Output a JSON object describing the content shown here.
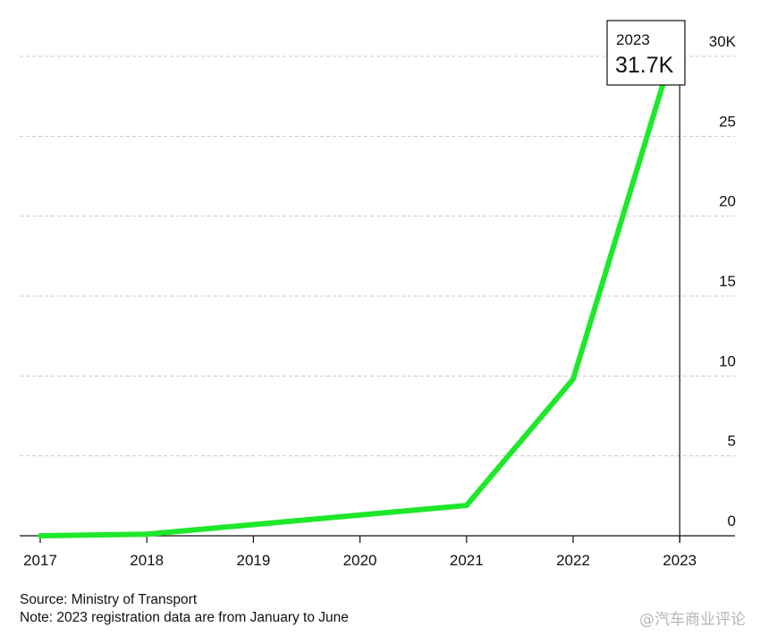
{
  "chart_data": {
    "type": "line",
    "x": [
      "2017",
      "2018",
      "2019",
      "2020",
      "2021",
      "2022",
      "2023"
    ],
    "series": [
      {
        "values": [
          0,
          0.1,
          0.7,
          1.3,
          1.9,
          9.8,
          31.7
        ],
        "color": "#1ee82a"
      }
    ],
    "ylim": [
      0,
      30
    ],
    "y_ticks": [
      0,
      5,
      10,
      15,
      20,
      25,
      30
    ],
    "y_tick_labels": [
      "0",
      "5",
      "10",
      "15",
      "20",
      "25",
      "30K"
    ],
    "grid": true,
    "y_axis_position": "right",
    "annotation": {
      "label": "2023",
      "value": "31.7K"
    },
    "source": "Source: Ministry of Transport",
    "note": "Note: 2023 registration data are from January to June"
  },
  "watermark": "@汽车商业评论"
}
